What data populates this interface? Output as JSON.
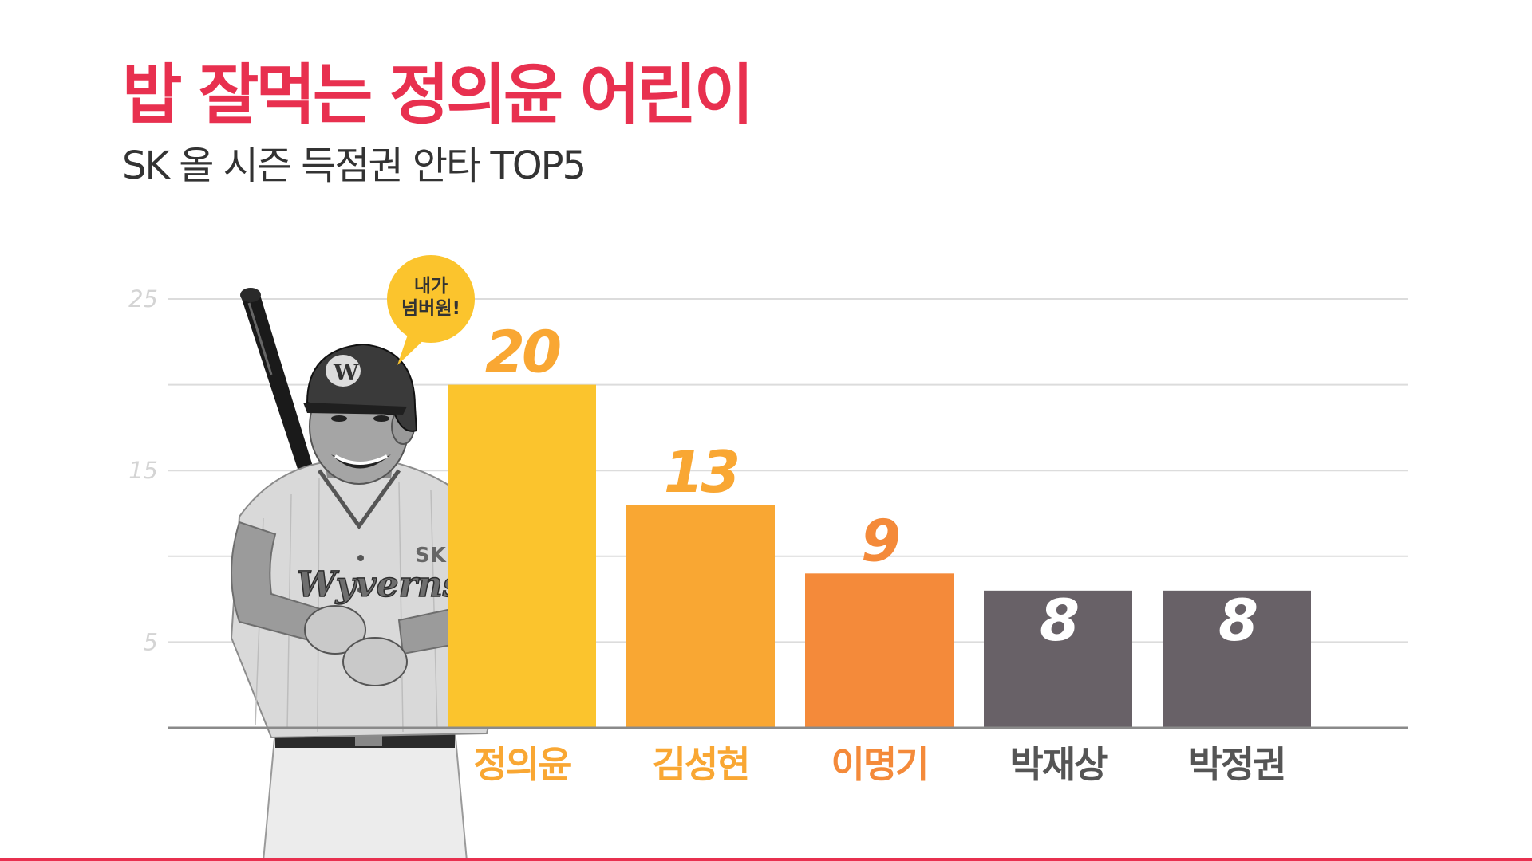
{
  "chart_data": {
    "type": "bar",
    "title": "밥 잘먹는 정의윤 어린이",
    "subtitle": "SK 올 시즌 득점권 안타 TOP5",
    "categories": [
      "정의윤",
      "김성현",
      "이명기",
      "박재상",
      "박정권"
    ],
    "values": [
      20,
      13,
      9,
      8,
      8
    ],
    "colors": [
      "#fbc42d",
      "#f9a733",
      "#f48a3a",
      "#686167",
      "#686167"
    ],
    "label_colors": [
      "#f9a733",
      "#f9a733",
      "#f48a3a",
      "#ffffff",
      "#ffffff"
    ],
    "cat_colors": [
      "#f9a733",
      "#f9a733",
      "#f48a3a",
      "#555555",
      "#555555"
    ],
    "ylim": [
      0,
      25
    ],
    "ytick_labels": [
      "25",
      "15",
      "5"
    ],
    "gridlines": [
      5,
      10,
      15,
      20,
      25
    ],
    "xlabel": "",
    "ylabel": ""
  },
  "speech_bubble": {
    "line1": "내가",
    "line2": "넘버원!",
    "color": "#fbc42d"
  },
  "player": {
    "cap_letter": "W",
    "jersey_team": "Wyverns",
    "jersey_sk": "SK"
  }
}
